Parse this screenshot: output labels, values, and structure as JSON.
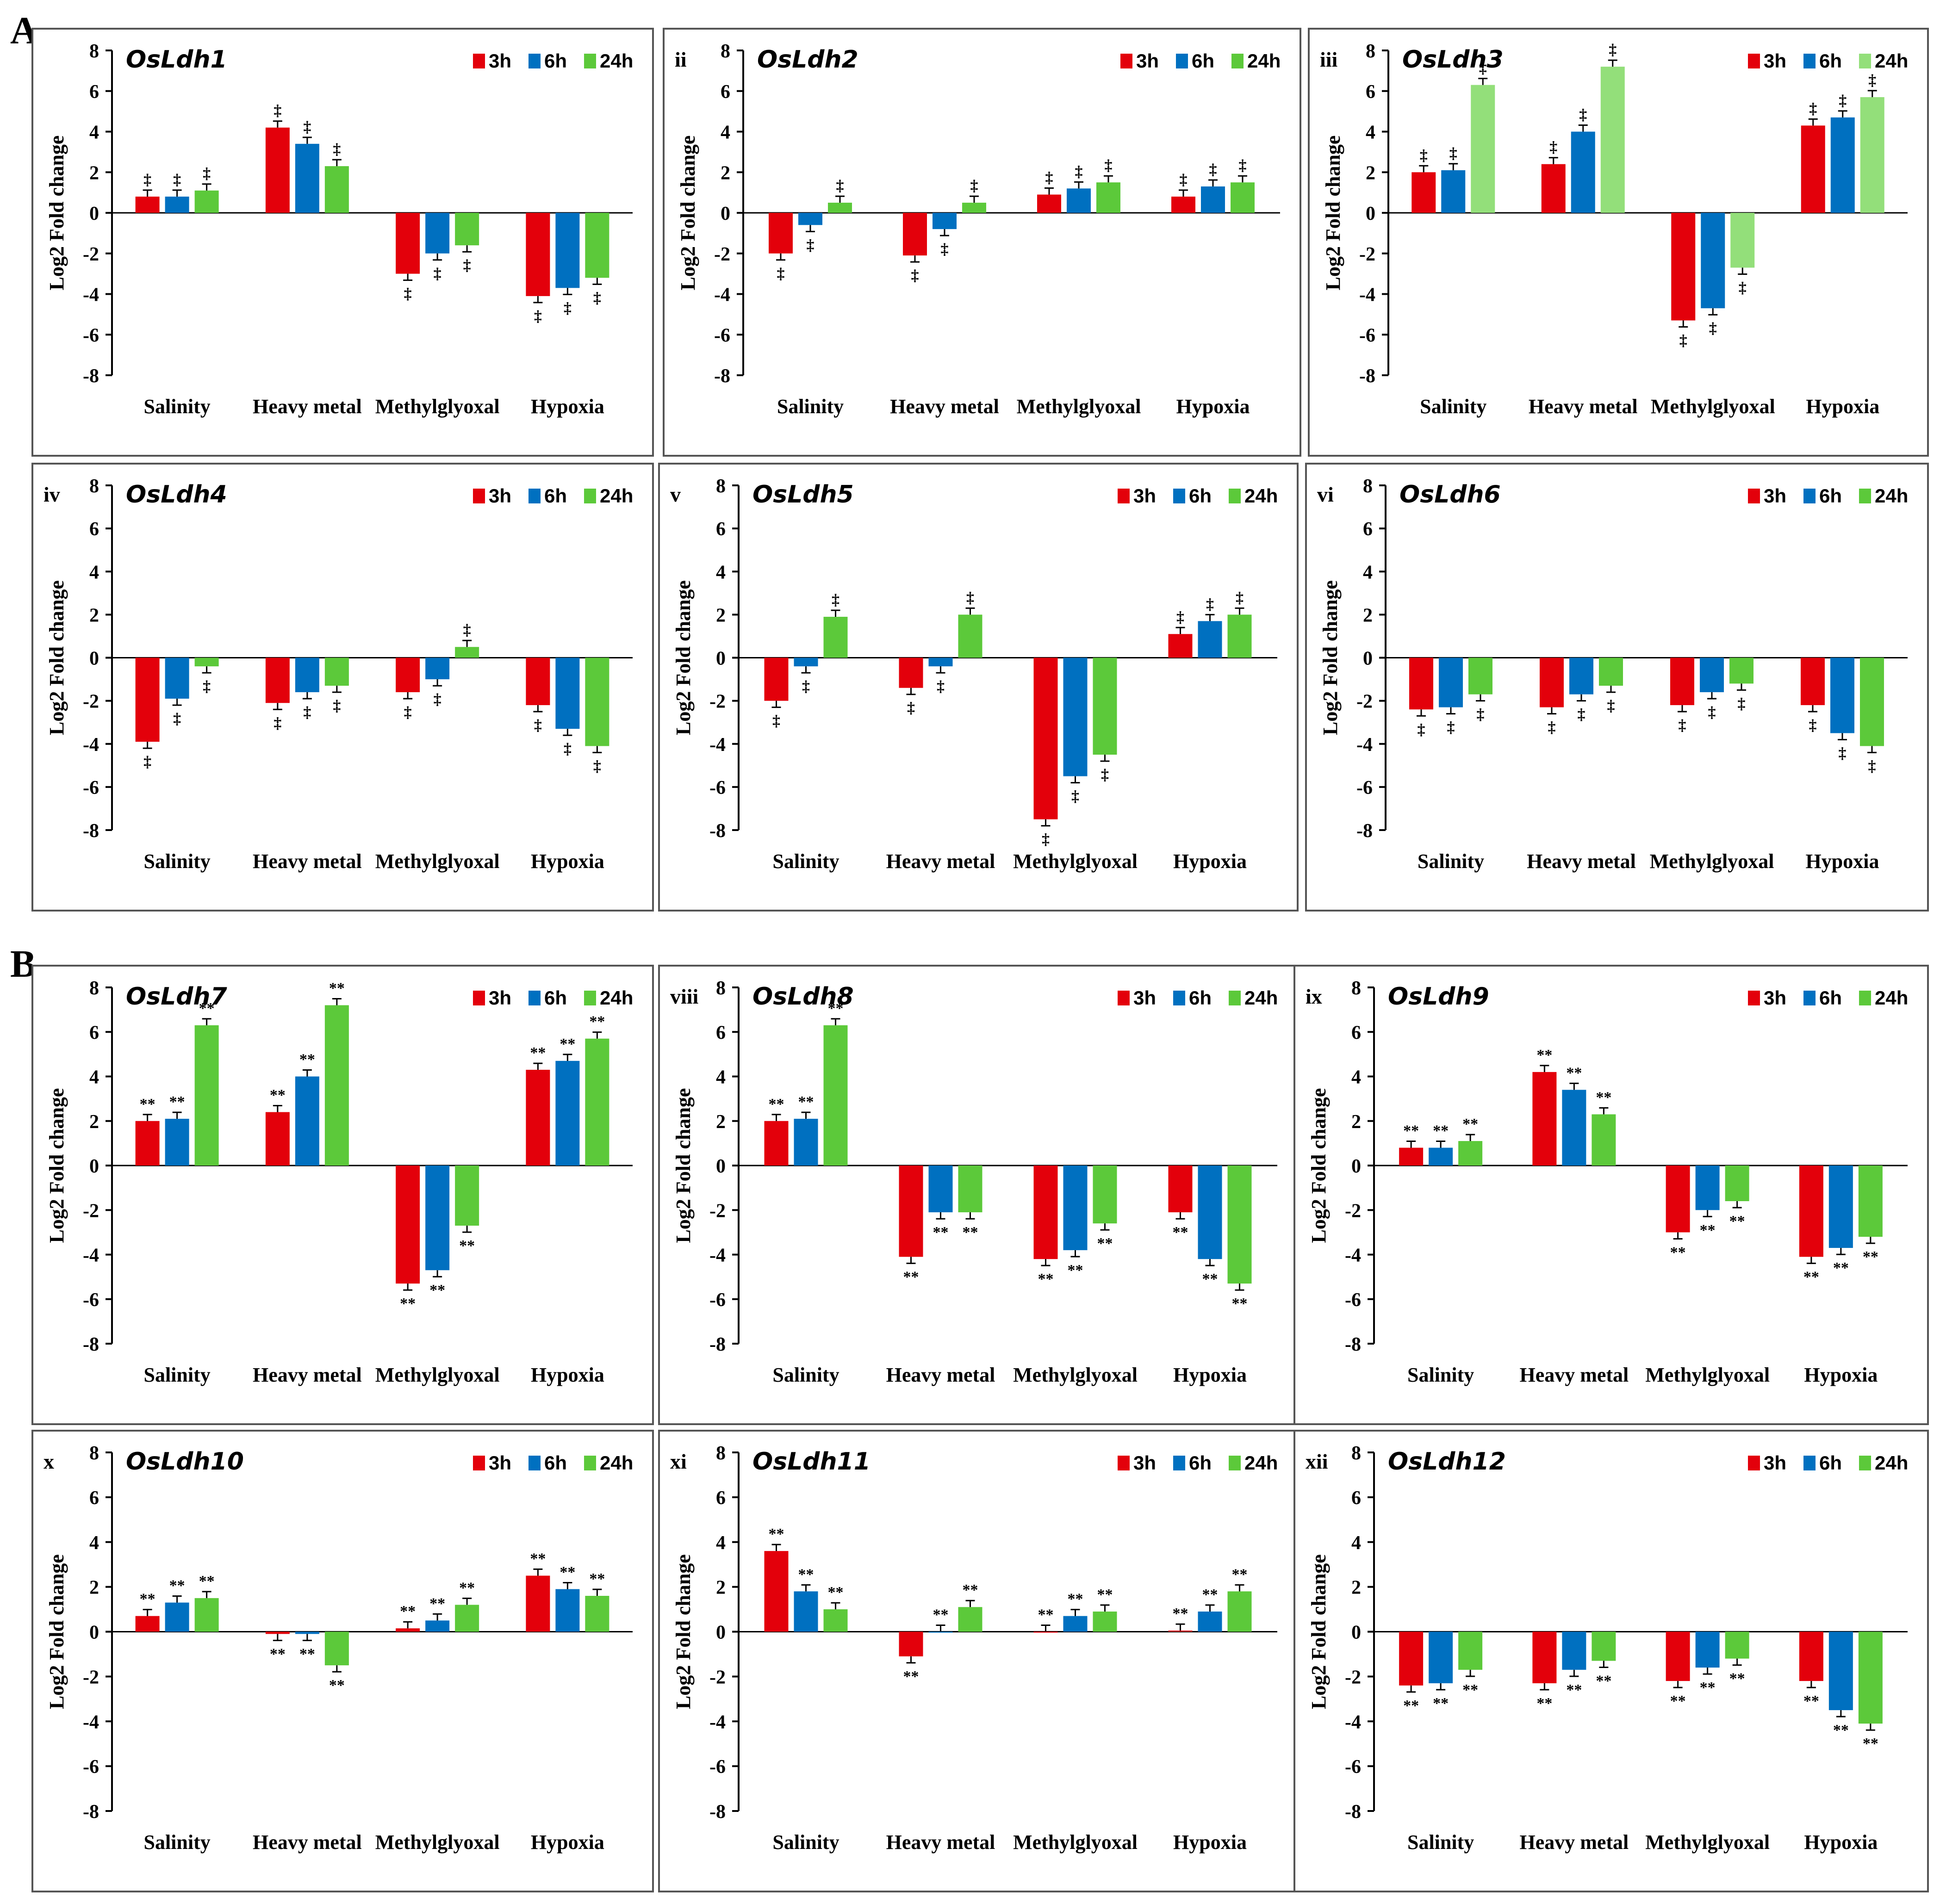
{
  "section_labels": [
    "A",
    "B"
  ],
  "colors": {
    "3h": "#e3000b",
    "6h": "#0070c0",
    "24h": "#5cc93a",
    "24h_light": "#93df7a",
    "axis": "#000000"
  },
  "chart_data": [
    {
      "type": "bar",
      "roman": "",
      "gene": "OsLdh1",
      "section": "A",
      "ylabel": "Log2 Fold change",
      "ylim": [
        -8,
        8
      ],
      "yticks": [
        8,
        6,
        4,
        2,
        0,
        -2,
        -4,
        -6,
        -8
      ],
      "categories": [
        "Salinity",
        "Heavy metal",
        "Methylglyoxal",
        "Hypoxia"
      ],
      "legend": [
        "3h",
        "6h",
        "24h"
      ],
      "marker": "‡",
      "series": [
        {
          "name": "3h",
          "values": [
            0.8,
            4.2,
            -3.0,
            -4.1
          ]
        },
        {
          "name": "6h",
          "values": [
            0.8,
            3.4,
            -2.0,
            -3.7
          ]
        },
        {
          "name": "24h",
          "values": [
            1.1,
            2.3,
            -1.6,
            -3.2
          ]
        }
      ]
    },
    {
      "type": "bar",
      "roman": "ii",
      "gene": "OsLdh2",
      "section": "A",
      "ylabel": "Log2  Fold change",
      "ylim": [
        -8,
        8
      ],
      "yticks": [
        8,
        6,
        4,
        2,
        0,
        -2,
        -4,
        -6,
        -8
      ],
      "categories": [
        "Salinity",
        "Heavy metal",
        "Methylglyoxal",
        "Hypoxia"
      ],
      "legend": [
        "3h",
        "6h",
        "24h"
      ],
      "marker": "‡",
      "series": [
        {
          "name": "3h",
          "values": [
            -2.0,
            -2.1,
            0.9,
            0.8
          ]
        },
        {
          "name": "6h",
          "values": [
            -0.6,
            -0.8,
            1.2,
            1.3
          ]
        },
        {
          "name": "24h",
          "values": [
            0.5,
            0.5,
            1.5,
            1.5
          ]
        }
      ]
    },
    {
      "type": "bar",
      "roman": "iii",
      "gene": "OsLdh3",
      "section": "A",
      "ylabel": "Log2 Fold change",
      "ylim": [
        -8,
        8
      ],
      "yticks": [
        8,
        6,
        4,
        2,
        0,
        -2,
        -4,
        -6,
        -8
      ],
      "categories": [
        "Salinity",
        "Heavy metal",
        "Methylglyoxal",
        "Hypoxia"
      ],
      "legend": [
        "3h",
        "6h",
        "24h"
      ],
      "marker": "‡",
      "light24": true,
      "series": [
        {
          "name": "3h",
          "values": [
            2.0,
            2.4,
            -5.3,
            4.3
          ]
        },
        {
          "name": "6h",
          "values": [
            2.1,
            4.0,
            -4.7,
            4.7
          ]
        },
        {
          "name": "24h",
          "values": [
            6.3,
            7.2,
            -2.7,
            5.7
          ]
        }
      ]
    },
    {
      "type": "bar",
      "roman": "iv",
      "gene": "OsLdh4",
      "section": "A",
      "ylabel": "Log2 Fold change",
      "ylim": [
        -8,
        8
      ],
      "yticks": [
        8,
        6,
        4,
        2,
        0,
        -2,
        -4,
        -6,
        -8
      ],
      "categories": [
        "Salinity",
        "Heavy metal",
        "Methylglyoxal",
        "Hypoxia"
      ],
      "legend": [
        "3h",
        "6h",
        "24h"
      ],
      "marker": "‡",
      "series": [
        {
          "name": "3h",
          "values": [
            -3.9,
            -2.1,
            -1.6,
            -2.2
          ]
        },
        {
          "name": "6h",
          "values": [
            -1.9,
            -1.6,
            -1.0,
            -3.3
          ]
        },
        {
          "name": "24h",
          "values": [
            -0.4,
            -1.3,
            0.5,
            -4.1
          ]
        }
      ]
    },
    {
      "type": "bar",
      "roman": "v",
      "gene": "OsLdh5",
      "section": "A",
      "ylabel": "Log2 Fold change",
      "ylim": [
        -8,
        8
      ],
      "yticks": [
        8,
        6,
        4,
        2,
        0,
        -2,
        -4,
        -6,
        -8
      ],
      "categories": [
        "Salinity",
        "Heavy metal",
        "Methylglyoxal",
        "Hypoxia"
      ],
      "legend": [
        "3h",
        "6h",
        "24h"
      ],
      "marker": "‡",
      "series": [
        {
          "name": "3h",
          "values": [
            -2.0,
            -1.4,
            -7.5,
            1.1
          ]
        },
        {
          "name": "6h",
          "values": [
            -0.4,
            -0.4,
            -5.5,
            1.7
          ]
        },
        {
          "name": "24h",
          "values": [
            1.9,
            2.0,
            -4.5,
            2.0
          ]
        }
      ]
    },
    {
      "type": "bar",
      "roman": "vi",
      "gene": "OsLdh6",
      "section": "A",
      "ylabel": "Log2 Fold change",
      "ylim": [
        -8,
        8
      ],
      "yticks": [
        8,
        6,
        4,
        2,
        0,
        -2,
        -4,
        -6,
        -8
      ],
      "categories": [
        "Salinity",
        "Heavy metal",
        "Methylglyoxal",
        "Hypoxia"
      ],
      "legend": [
        "3h",
        "6h",
        "24h"
      ],
      "marker": "‡",
      "series": [
        {
          "name": "3h",
          "values": [
            -2.4,
            -2.3,
            -2.2,
            -2.2
          ]
        },
        {
          "name": "6h",
          "values": [
            -2.3,
            -1.7,
            -1.6,
            -3.5
          ]
        },
        {
          "name": "24h",
          "values": [
            -1.7,
            -1.3,
            -1.2,
            -4.1
          ]
        }
      ]
    },
    {
      "type": "bar",
      "roman": "",
      "gene": "OsLdh7",
      "section": "B",
      "ylabel": "Log2 Fold change",
      "ylim": [
        -8,
        8
      ],
      "yticks": [
        8,
        6,
        4,
        2,
        0,
        -2,
        -4,
        -6,
        -8
      ],
      "categories": [
        "Salinity",
        "Heavy metal",
        "Methylglyoxal",
        "Hypoxia"
      ],
      "legend": [
        "3h",
        "6h",
        "24h"
      ],
      "marker": "**",
      "series": [
        {
          "name": "3h",
          "values": [
            2.0,
            2.4,
            -5.3,
            4.3
          ]
        },
        {
          "name": "6h",
          "values": [
            2.1,
            4.0,
            -4.7,
            4.7
          ]
        },
        {
          "name": "24h",
          "values": [
            6.3,
            7.2,
            -2.7,
            5.7
          ]
        }
      ]
    },
    {
      "type": "bar",
      "roman": "viii",
      "gene": "OsLdh8",
      "section": "B",
      "ylabel": "Log2 Fold change",
      "ylim": [
        -8,
        8
      ],
      "yticks": [
        8,
        6,
        4,
        2,
        0,
        -2,
        -4,
        -6,
        -8
      ],
      "categories": [
        "Salinity",
        "Heavy metal",
        "Methylglyoxal",
        "Hypoxia"
      ],
      "legend": [
        "3h",
        "6h",
        "24h"
      ],
      "marker": "**",
      "series": [
        {
          "name": "3h",
          "values": [
            2.0,
            -4.1,
            -4.2,
            -2.1
          ]
        },
        {
          "name": "6h",
          "values": [
            2.1,
            -2.1,
            -3.8,
            -4.2
          ]
        },
        {
          "name": "24h",
          "values": [
            6.3,
            -2.1,
            -2.6,
            -5.3
          ]
        }
      ]
    },
    {
      "type": "bar",
      "roman": "ix",
      "gene": "OsLdh9",
      "section": "B",
      "ylabel": "Log2 Fold change",
      "ylim": [
        -8,
        8
      ],
      "yticks": [
        8,
        6,
        4,
        2,
        0,
        -2,
        -4,
        -6,
        -8
      ],
      "categories": [
        "Salinity",
        "Heavy metal",
        "Methylglyoxal",
        "Hypoxia"
      ],
      "legend": [
        "3h",
        "6h",
        "24h"
      ],
      "marker": "**",
      "series": [
        {
          "name": "3h",
          "values": [
            0.8,
            4.2,
            -3.0,
            -4.1
          ]
        },
        {
          "name": "6h",
          "values": [
            0.8,
            3.4,
            -2.0,
            -3.7
          ]
        },
        {
          "name": "24h",
          "values": [
            1.1,
            2.3,
            -1.6,
            -3.2
          ]
        }
      ]
    },
    {
      "type": "bar",
      "roman": "x",
      "gene": "OsLdh10",
      "section": "B",
      "ylabel": "Log2 Fold change",
      "ylim": [
        -8,
        8
      ],
      "yticks": [
        8,
        6,
        4,
        2,
        0,
        -2,
        -4,
        -6,
        -8
      ],
      "categories": [
        "Salinity",
        "Heavy metal",
        "Methylglyoxal",
        "Hypoxia"
      ],
      "legend": [
        "3h",
        "6h",
        "24h"
      ],
      "marker": "**",
      "series": [
        {
          "name": "3h",
          "values": [
            0.7,
            -0.1,
            0.15,
            2.5
          ]
        },
        {
          "name": "6h",
          "values": [
            1.3,
            -0.1,
            0.5,
            1.9
          ]
        },
        {
          "name": "24h",
          "values": [
            1.5,
            -1.5,
            1.2,
            1.6
          ]
        }
      ]
    },
    {
      "type": "bar",
      "roman": "xi",
      "gene": "OsLdh11",
      "section": "B",
      "ylabel": "Log2 Fold change",
      "ylim": [
        -8,
        8
      ],
      "yticks": [
        8,
        6,
        4,
        2,
        0,
        -2,
        -4,
        -6,
        -8
      ],
      "categories": [
        "Salinity",
        "Heavy metal",
        "Methylglyoxal",
        "Hypoxia"
      ],
      "legend": [
        "3h",
        "6h",
        "24h"
      ],
      "marker": "**",
      "series": [
        {
          "name": "3h",
          "values": [
            3.6,
            -1.1,
            0.0,
            0.05
          ]
        },
        {
          "name": "6h",
          "values": [
            1.8,
            0.0,
            0.7,
            0.9
          ]
        },
        {
          "name": "24h",
          "values": [
            1.0,
            1.1,
            0.9,
            1.8
          ]
        }
      ]
    },
    {
      "type": "bar",
      "roman": "xii",
      "gene": "OsLdh12",
      "section": "B",
      "ylabel": "Log2 Fold change",
      "ylim": [
        -8,
        8
      ],
      "yticks": [
        8,
        6,
        4,
        2,
        0,
        -2,
        -4,
        -6,
        -8
      ],
      "categories": [
        "Salinity",
        "Heavy metal",
        "Methylglyoxal",
        "Hypoxia"
      ],
      "legend": [
        "3h",
        "6h",
        "24h"
      ],
      "marker": "**",
      "series": [
        {
          "name": "3h",
          "values": [
            -2.4,
            -2.3,
            -2.2,
            -2.2
          ]
        },
        {
          "name": "6h",
          "values": [
            -2.3,
            -1.7,
            -1.6,
            -3.5
          ]
        },
        {
          "name": "24h",
          "values": [
            -1.7,
            -1.3,
            -1.2,
            -4.1
          ]
        }
      ]
    }
  ]
}
